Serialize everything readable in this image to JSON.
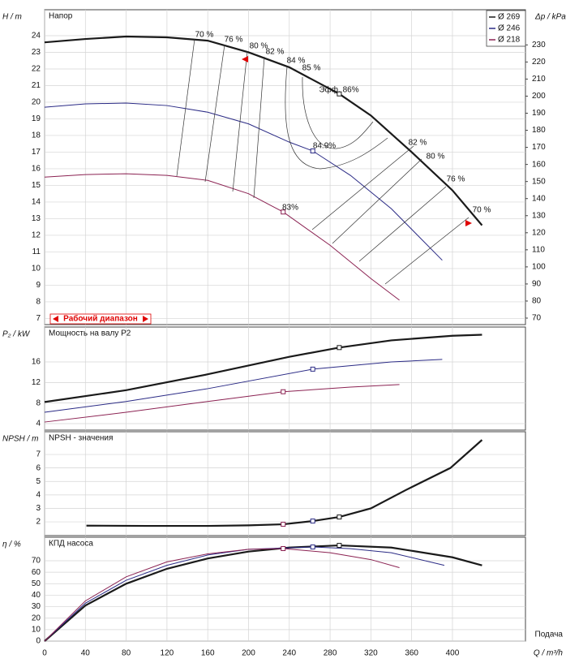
{
  "chart_data": [
    {
      "type": "line",
      "title": "Напор",
      "y_label": "H / m",
      "y2_label": "Δp / kPa",
      "xlim": [
        0,
        471.6
      ],
      "xticks": [
        0,
        40,
        80,
        120,
        160,
        200,
        240,
        280,
        320,
        360,
        400
      ],
      "ylim": [
        6.63,
        25.56
      ],
      "yticks": [
        7,
        8,
        9,
        10,
        11,
        12,
        13,
        14,
        15,
        16,
        17,
        18,
        19,
        20,
        21,
        22,
        23,
        24
      ],
      "y2lim": [
        66.2,
        250.6
      ],
      "y2ticks": [
        70,
        80,
        90,
        100,
        110,
        120,
        130,
        140,
        150,
        160,
        170,
        180,
        190,
        200,
        210,
        220,
        230
      ],
      "grid": true,
      "legend": "upper right",
      "series": [
        {
          "name": "Ø 269",
          "color": "#1a1a1a",
          "x": [
            0,
            40,
            80,
            120,
            160,
            200,
            240,
            289,
            320,
            360,
            400,
            429
          ],
          "values": [
            23.6,
            23.8,
            23.95,
            23.9,
            23.7,
            23.0,
            22.1,
            20.5,
            19.2,
            17.0,
            14.7,
            12.6
          ]
        },
        {
          "name": "Ø 246",
          "color": "#2a2a85",
          "x": [
            0,
            40,
            80,
            120,
            160,
            200,
            240,
            263,
            300,
            340,
            390
          ],
          "values": [
            19.7,
            19.9,
            19.95,
            19.8,
            19.4,
            18.7,
            17.6,
            17.07,
            15.6,
            13.6,
            10.5
          ]
        },
        {
          "name": "Ø 218",
          "color": "#8b2252",
          "x": [
            0,
            40,
            80,
            120,
            160,
            200,
            234,
            280,
            320,
            348
          ],
          "values": [
            15.5,
            15.65,
            15.7,
            15.6,
            15.3,
            14.5,
            13.4,
            11.4,
            9.4,
            8.1
          ]
        }
      ],
      "markers": {
        "x": [
          289,
          263,
          234
        ],
        "values": [
          20.5,
          17.07,
          13.4
        ],
        "colors": [
          "#1a1a1a",
          "#2a2a85",
          "#8b2252"
        ]
      },
      "annotations": [
        "70 %",
        "76 %",
        "80 %",
        "82 %",
        "84 %",
        "85 %",
        "Эфф. 86%",
        "84.9%",
        "83%",
        "82 %",
        "80 %",
        "76 %",
        "70 %"
      ],
      "range_label": "Рабочий диапазон"
    },
    {
      "type": "line",
      "title": "Мощность на валу P2",
      "y_label": "P₂ / kW",
      "xlim": [
        0,
        471.6
      ],
      "xticks": [
        0,
        40,
        80,
        120,
        160,
        200,
        240,
        280,
        320,
        360,
        400
      ],
      "ylim": [
        2.73,
        22.8
      ],
      "yticks": [
        4,
        8,
        12,
        16
      ],
      "grid": true,
      "series": [
        {
          "color": "#1a1a1a",
          "x": [
            0,
            80,
            160,
            240,
            289,
            340,
            400,
            429
          ],
          "values": [
            8.2,
            10.5,
            13.6,
            17.0,
            18.8,
            20.2,
            21.1,
            21.3
          ]
        },
        {
          "color": "#2a2a85",
          "x": [
            0,
            80,
            160,
            263,
            340,
            390
          ],
          "values": [
            6.2,
            8.3,
            10.8,
            14.6,
            16.0,
            16.5
          ]
        },
        {
          "color": "#8b2252",
          "x": [
            0,
            80,
            160,
            234,
            300,
            348
          ],
          "values": [
            4.3,
            6.2,
            8.3,
            10.2,
            11.1,
            11.6
          ]
        }
      ],
      "markers": {
        "x": [
          289,
          263,
          234
        ],
        "values": [
          18.8,
          14.6,
          10.2
        ],
        "colors": [
          "#1a1a1a",
          "#2a2a85",
          "#8b2252"
        ]
      }
    },
    {
      "type": "line",
      "title": "NPSH - значения",
      "y_label": "NPSH / m",
      "xlim": [
        0,
        471.6
      ],
      "xticks": [
        0,
        40,
        80,
        120,
        160,
        200,
        240,
        280,
        320,
        360,
        400
      ],
      "ylim": [
        0.98,
        8.69
      ],
      "yticks": [
        2,
        3,
        4,
        5,
        6,
        7
      ],
      "grid": true,
      "series": [
        {
          "color": "#1a1a1a",
          "x": [
            41,
            100,
            160,
            200,
            234,
            263,
            289,
            320,
            354,
            398,
            429
          ],
          "values": [
            1.72,
            1.7,
            1.7,
            1.74,
            1.82,
            2.06,
            2.36,
            3.0,
            4.35,
            6.0,
            8.08
          ]
        }
      ],
      "markers": {
        "x": [
          289,
          263,
          234
        ],
        "values": [
          2.36,
          2.06,
          1.82
        ],
        "colors": [
          "#1a1a1a",
          "#2a2a85",
          "#8b2252"
        ]
      }
    },
    {
      "type": "line",
      "title": "КПД насоса",
      "y_label": "η / %",
      "x_label": "Q / m³/h",
      "x_caption": "Подача",
      "xlim": [
        0,
        471.6
      ],
      "xticks": [
        0,
        40,
        80,
        120,
        160,
        200,
        240,
        280,
        320,
        360,
        400
      ],
      "ylim": [
        0,
        90.5
      ],
      "yticks": [
        0,
        10,
        20,
        30,
        40,
        50,
        60,
        70
      ],
      "grid": true,
      "series": [
        {
          "color": "#1a1a1a",
          "x": [
            0,
            40,
            80,
            120,
            160,
            200,
            240,
            289,
            340,
            400,
            429
          ],
          "values": [
            0,
            31,
            50,
            63,
            72,
            78,
            81.5,
            83.4,
            81.5,
            73,
            66
          ]
        },
        {
          "color": "#2a2a85",
          "x": [
            0,
            40,
            80,
            120,
            160,
            200,
            263,
            300,
            340,
            392
          ],
          "values": [
            0,
            33,
            53,
            66,
            75,
            80,
            82,
            80.5,
            77,
            66
          ]
        },
        {
          "color": "#8b2252",
          "x": [
            0,
            40,
            80,
            120,
            160,
            200,
            234,
            280,
            320,
            348
          ],
          "values": [
            0,
            35,
            56,
            69,
            76,
            80,
            80.6,
            77,
            71,
            64
          ]
        }
      ],
      "markers": {
        "x": [
          289,
          263,
          234
        ],
        "values": [
          83.4,
          82,
          80.6
        ],
        "colors": [
          "#1a1a1a",
          "#2a2a85",
          "#8b2252"
        ]
      }
    }
  ]
}
